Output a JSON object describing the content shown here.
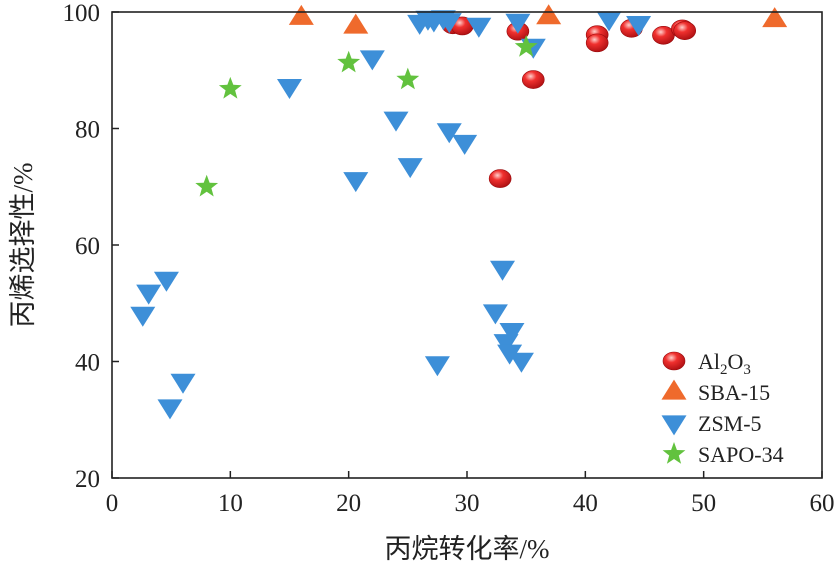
{
  "chart_data": {
    "type": "scatter",
    "title": "",
    "xlabel": "丙烷转化率/%",
    "ylabel": "丙烯选择性/%",
    "xlim": [
      0,
      60
    ],
    "ylim": [
      20,
      100
    ],
    "xticks": [
      "0",
      "10",
      "20",
      "30",
      "40",
      "50",
      "60"
    ],
    "yticks": [
      "20",
      "40",
      "60",
      "80",
      "100"
    ],
    "legend_position": "bottom-right",
    "series": [
      {
        "name": "Al2O3",
        "label_main": "Al",
        "label_sub1": "2",
        "label_mid": "O",
        "label_sub2": "3",
        "marker": "sphere",
        "color": "#e8141c",
        "points": [
          [
            28.8,
            97.8
          ],
          [
            29.6,
            97.6
          ],
          [
            34.3,
            96.7
          ],
          [
            35.6,
            88.4
          ],
          [
            32.8,
            71.4
          ],
          [
            41.0,
            96.1
          ],
          [
            41.0,
            94.7
          ],
          [
            43.9,
            97.2
          ],
          [
            46.6,
            96.0
          ],
          [
            48.2,
            97.1
          ],
          [
            48.4,
            96.8
          ]
        ]
      },
      {
        "name": "SBA-15",
        "marker": "triangle-up",
        "color": "#ef6a2c",
        "points": [
          [
            16.0,
            99.1
          ],
          [
            20.6,
            97.6
          ],
          [
            36.9,
            99.2
          ],
          [
            56.0,
            98.7
          ]
        ]
      },
      {
        "name": "ZSM-5",
        "marker": "triangle-down",
        "color": "#3d8fd8",
        "points": [
          [
            2.6,
            48.1
          ],
          [
            3.1,
            51.9
          ],
          [
            4.6,
            54.1
          ],
          [
            4.9,
            32.2
          ],
          [
            6.0,
            36.6
          ],
          [
            15.0,
            87.2
          ],
          [
            20.6,
            71.2
          ],
          [
            22.0,
            92.1
          ],
          [
            24.0,
            81.6
          ],
          [
            25.2,
            73.6
          ],
          [
            26.0,
            98.2
          ],
          [
            26.7,
            98.9
          ],
          [
            27.2,
            98.6
          ],
          [
            27.5,
            39.6
          ],
          [
            28.0,
            99.0
          ],
          [
            28.5,
            98.5
          ],
          [
            28.5,
            79.6
          ],
          [
            29.8,
            77.6
          ],
          [
            31.0,
            97.7
          ],
          [
            32.4,
            48.5
          ],
          [
            33.0,
            56.0
          ],
          [
            33.3,
            43.4
          ],
          [
            33.6,
            41.6
          ],
          [
            33.8,
            45.3
          ],
          [
            34.3,
            98.4
          ],
          [
            34.6,
            40.2
          ],
          [
            35.6,
            94.1
          ],
          [
            42.0,
            98.8
          ],
          [
            44.5,
            98.0
          ]
        ]
      },
      {
        "name": "SAPO-34",
        "marker": "star",
        "color": "#62c23e",
        "points": [
          [
            8.0,
            70.0
          ],
          [
            10.0,
            86.8
          ],
          [
            20.0,
            91.3
          ],
          [
            25.0,
            88.4
          ],
          [
            35.0,
            94.0
          ]
        ]
      }
    ]
  }
}
